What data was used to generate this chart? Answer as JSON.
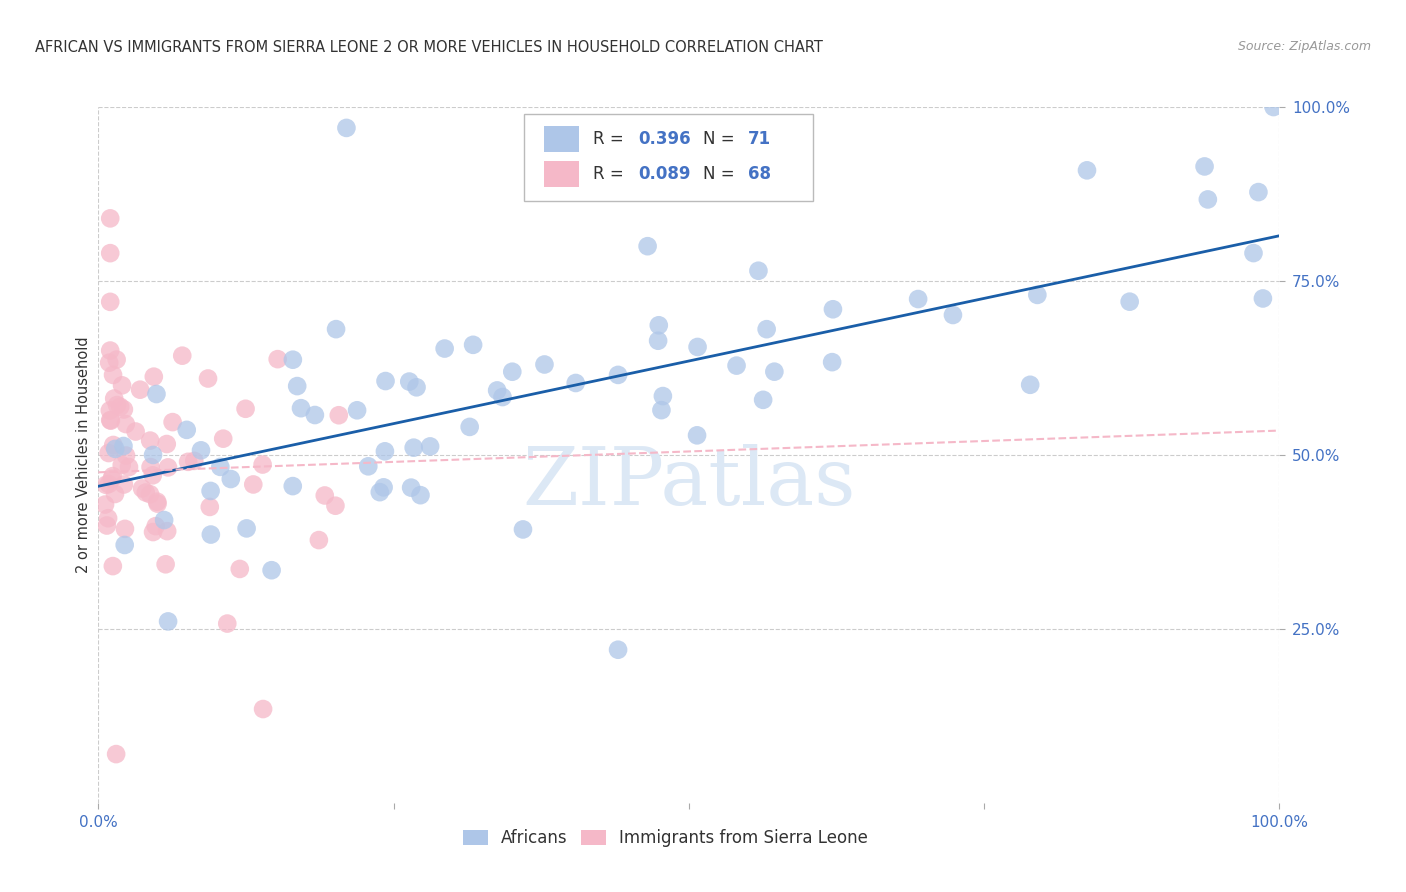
{
  "title": "AFRICAN VS IMMIGRANTS FROM SIERRA LEONE 2 OR MORE VEHICLES IN HOUSEHOLD CORRELATION CHART",
  "source": "Source: ZipAtlas.com",
  "ylabel": "2 or more Vehicles in Household",
  "xlim": [
    0.0,
    1.0
  ],
  "ylim": [
    0.0,
    1.0
  ],
  "ytick_labels": [
    "25.0%",
    "50.0%",
    "75.0%",
    "100.0%"
  ],
  "ytick_positions": [
    0.25,
    0.5,
    0.75,
    1.0
  ],
  "xtick_positions": [
    0.0,
    0.25,
    0.5,
    0.75,
    1.0
  ],
  "xtick_labels": [
    "0.0%",
    "",
    "",
    "",
    "100.0%"
  ],
  "legend_r1": "0.396",
  "legend_n1": "71",
  "legend_r2": "0.089",
  "legend_n2": "68",
  "blue_color": "#aec6e8",
  "pink_color": "#f5b8c8",
  "line_blue": "#1a5ea8",
  "line_pink": "#d08090",
  "watermark_color": "#dce8f5",
  "title_color": "#333333",
  "tick_color": "#4472c4",
  "background_color": "#ffffff",
  "grid_color": "#cccccc",
  "blue_line_y0": 0.455,
  "blue_line_y1": 0.815,
  "pink_line_y0": 0.475,
  "pink_line_y1": 0.535
}
